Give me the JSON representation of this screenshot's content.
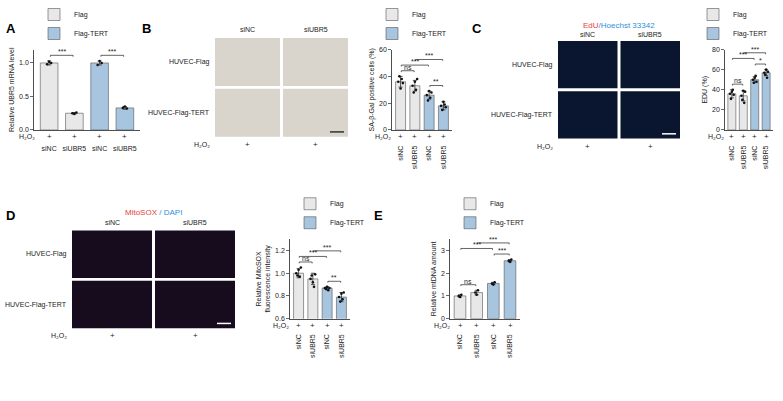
{
  "panel_labels": [
    "A",
    "B",
    "C",
    "D",
    "E"
  ],
  "image_panels": [
    {
      "header": null,
      "columns": [
        "siNC",
        "siUBR5"
      ],
      "rows": [
        "HUVEC-Flag",
        "HUVEC-Flag-TERT"
      ],
      "treatment_label": "H₂O₂",
      "treatment": [
        "+",
        "+"
      ]
    },
    {
      "header": [
        {
          "text": "EdU",
          "color": "#e8403a"
        },
        {
          "text": "/Hoechst 33342",
          "color": "#2f8fd8"
        }
      ],
      "columns": [
        "siNC",
        "siUBR5"
      ],
      "rows": [
        "HUVEC-Flag",
        "HUVEC-Flag-TERT"
      ],
      "treatment_label": "H₂O₂",
      "treatment": [
        "+",
        "+"
      ]
    },
    {
      "header": [
        {
          "text": "MitoSOX",
          "color": "#e8403a"
        },
        {
          "text": " / DAPI",
          "color": "#2f8fd8"
        }
      ],
      "columns": [
        "siNC",
        "siUBR5"
      ],
      "rows": [
        "HUVEC-Flag",
        "HUVEC-Flag-TERT"
      ],
      "treatment_label": "H₂O₂",
      "treatment": [
        "+",
        "+"
      ]
    }
  ],
  "chart_data": [
    {
      "type": "bar",
      "ylabel": [
        "Relative UBR5 mRNA level"
      ],
      "categories": [
        "siNC",
        "siUBR5",
        "siNC",
        "siUBR5"
      ],
      "treatment_label": "H₂O₂",
      "treatment": [
        "+",
        "+",
        "+",
        "+"
      ],
      "series": [
        {
          "name": "Flag",
          "color": "#e8e8e8",
          "values": [
            1.0,
            0.25,
            null,
            null
          ],
          "error": [
            0.03,
            0.01,
            null,
            null
          ],
          "points": [
            [
              0.98,
              1.02,
              1.0
            ],
            [
              0.25,
              0.24,
              0.26
            ],
            null,
            null
          ]
        },
        {
          "name": "Flag-TERT",
          "color": "#a8c5df",
          "values": [
            null,
            null,
            1.0,
            0.33
          ],
          "error": [
            null,
            null,
            0.03,
            0.02
          ],
          "points": [
            null,
            null,
            [
              0.97,
              1.03,
              1.0
            ],
            [
              0.33,
              0.35,
              0.32
            ]
          ]
        }
      ],
      "ylim": [
        0,
        1.2
      ],
      "yticks": [
        {
          "value": 0,
          "label": "0.0"
        },
        0.5,
        {
          "value": 1,
          "label": "1.0"
        }
      ],
      "significance": [
        {
          "between": [
            0,
            1
          ],
          "label": "***"
        },
        {
          "between": [
            2,
            3
          ],
          "label": "***"
        }
      ],
      "legend": "top left",
      "grid": false
    },
    {
      "type": "bar",
      "ylabel": [
        "SA-β-Gal positive cells (%)"
      ],
      "categories": [
        "siNC",
        "siUBR5",
        "siNC",
        "siUBR5"
      ],
      "treatment_label": "H₂O₂",
      "treatment": [
        "+",
        "+",
        "+",
        "+"
      ],
      "series": [
        {
          "name": "Flag",
          "color": "#e8e8e8",
          "values": [
            36,
            33,
            null,
            null
          ],
          "error": [
            4,
            4,
            null,
            null
          ],
          "points": [
            [
              36,
              40,
              31,
              38,
              35
            ],
            [
              33,
              28,
              36,
              30,
              38
            ],
            null,
            null
          ]
        },
        {
          "name": "Flag-TERT",
          "color": "#a8c5df",
          "values": [
            null,
            null,
            26,
            18
          ],
          "error": [
            null,
            null,
            3,
            3
          ],
          "points": [
            null,
            null,
            [
              26,
              22,
              29,
              24,
              28
            ],
            [
              18,
              15,
              21,
              19,
              17
            ]
          ]
        }
      ],
      "ylim": [
        0,
        60
      ],
      "yticks": [
        0,
        20,
        40,
        60
      ],
      "significance": [
        {
          "between": [
            0,
            1
          ],
          "label": "ns"
        },
        {
          "between": [
            0,
            2
          ],
          "label": "***"
        },
        {
          "between": [
            1,
            3
          ],
          "label": "***"
        },
        {
          "between": [
            2,
            3
          ],
          "label": "**"
        }
      ],
      "legend": "top right",
      "grid": false
    },
    {
      "type": "bar",
      "ylabel": [
        "EDU (%)"
      ],
      "categories": [
        "siNC",
        "siUBR5",
        "siNC",
        "siUBR5"
      ],
      "treatment_label": "H₂O₂",
      "treatment": [
        "+",
        "+",
        "+",
        "+"
      ],
      "series": [
        {
          "name": "Flag",
          "color": "#e8e8e8",
          "values": [
            36,
            34,
            null,
            null
          ],
          "error": [
            4,
            5,
            null,
            null
          ],
          "points": [
            [
              36,
              31,
              38,
              40,
              35
            ],
            [
              34,
              30,
              39,
              27,
              38
            ],
            null,
            null
          ]
        },
        {
          "name": "Flag-TERT",
          "color": "#a8c5df",
          "values": [
            null,
            null,
            50,
            57
          ],
          "error": [
            null,
            null,
            3,
            3
          ],
          "points": [
            null,
            null,
            [
              50,
              47,
              52,
              54,
              48
            ],
            [
              57,
              55,
              60,
              52,
              58
            ]
          ]
        }
      ],
      "ylim": [
        0,
        80
      ],
      "yticks": [
        0,
        20,
        40,
        60,
        80
      ],
      "significance": [
        {
          "between": [
            0,
            1
          ],
          "label": "ns"
        },
        {
          "between": [
            0,
            2
          ],
          "label": "***"
        },
        {
          "between": [
            1,
            3
          ],
          "label": "***"
        },
        {
          "between": [
            2,
            3
          ],
          "label": "*"
        }
      ],
      "legend": "top right",
      "grid": false
    },
    {
      "type": "bar",
      "ylabel": [
        "Relative MitoSOX",
        "fluorescence intensity"
      ],
      "categories": [
        "siNC",
        "siUBR5",
        "siNC",
        "siUBR5"
      ],
      "treatment_label": "H₂O₂",
      "treatment": [
        "+",
        "+",
        "+",
        "+"
      ],
      "series": [
        {
          "name": "Flag",
          "color": "#e8e8e8",
          "values": [
            1.0,
            0.95,
            null,
            null
          ],
          "error": [
            0.04,
            0.05,
            null,
            null
          ],
          "points": [
            [
              1.0,
              0.98,
              1.03,
              0.97,
              1.05
            ],
            [
              0.95,
              0.98,
              0.92,
              0.88,
              0.99
            ],
            null,
            null
          ]
        },
        {
          "name": "Flag-TERT",
          "color": "#a8c5df",
          "values": [
            null,
            null,
            0.87,
            0.79
          ],
          "error": [
            null,
            null,
            0.01,
            0.04
          ],
          "points": [
            null,
            null,
            [
              0.87,
              0.86,
              0.88,
              0.85,
              0.87
            ],
            [
              0.79,
              0.75,
              0.82,
              0.77,
              0.83
            ]
          ]
        }
      ],
      "ylim": [
        0.6,
        1.3
      ],
      "yticks": [
        0.6,
        0.8,
        {
          "value": 1,
          "label": "1.0"
        },
        1.2
      ],
      "significance": [
        {
          "between": [
            0,
            1
          ],
          "label": "ns"
        },
        {
          "between": [
            0,
            2
          ],
          "label": "***"
        },
        {
          "between": [
            1,
            3
          ],
          "label": "***"
        },
        {
          "between": [
            2,
            3
          ],
          "label": "**"
        }
      ],
      "legend": "top left",
      "grid": false
    },
    {
      "type": "bar",
      "ylabel": [
        "Relative mtDNA amount"
      ],
      "categories": [
        "siNC",
        "siUBR5",
        "siNC",
        "siUBR5"
      ],
      "treatment_label": "H₂O₂",
      "treatment": [
        "+",
        "+",
        "+",
        "+"
      ],
      "series": [
        {
          "name": "Flag",
          "color": "#e8e8e8",
          "values": [
            1.0,
            1.15,
            null,
            null
          ],
          "error": [
            0.05,
            0.1,
            null,
            null
          ],
          "points": [
            [
              1.0,
              0.95,
              1.05
            ],
            [
              1.15,
              1.05,
              1.25
            ],
            null,
            null
          ]
        },
        {
          "name": "Flag-TERT",
          "color": "#a8c5df",
          "values": [
            null,
            null,
            1.55,
            2.55
          ],
          "error": [
            null,
            null,
            0.05,
            0.05
          ],
          "points": [
            null,
            null,
            [
              1.55,
              1.5,
              1.6
            ],
            [
              2.55,
              2.5,
              2.6
            ]
          ]
        }
      ],
      "ylim": [
        0,
        3.5
      ],
      "yticks": [
        0,
        1,
        2,
        3
      ],
      "significance": [
        {
          "between": [
            0,
            1
          ],
          "label": "ns"
        },
        {
          "between": [
            0,
            2
          ],
          "label": "***"
        },
        {
          "between": [
            1,
            3
          ],
          "label": "***"
        },
        {
          "between": [
            2,
            3
          ],
          "label": "***"
        }
      ],
      "legend": "top left",
      "grid": false
    }
  ]
}
